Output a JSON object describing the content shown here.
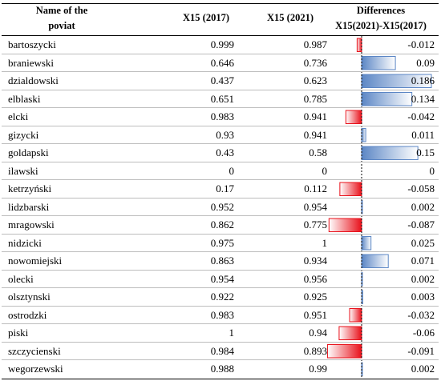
{
  "header": {
    "name_line1": "Name of the",
    "name_line2": "poviat",
    "col_2017": "X15 (2017)",
    "col_2021": "X15 (2021)",
    "diff_line1": "Differences",
    "diff_line2": "X15(2021)-X15(2017)"
  },
  "colors": {
    "positive": "#5b86c5",
    "negative": "#e8101a"
  },
  "chart_data": {
    "type": "table",
    "columns": [
      "Name of the poviat",
      "X15 (2017)",
      "X15 (2021)",
      "Differences X15(2021)-X15(2017)"
    ],
    "rows": [
      {
        "name": "bartoszycki",
        "v2017": "0.999",
        "v2021": "0.987",
        "diff": "-0.012",
        "d": -0.012
      },
      {
        "name": "braniewski",
        "v2017": "0.646",
        "v2021": "0.736",
        "diff": "0.09",
        "d": 0.09
      },
      {
        "name": "dzialdowski",
        "v2017": "0.437",
        "v2021": "0.623",
        "diff": "0.186",
        "d": 0.186
      },
      {
        "name": "elblaski",
        "v2017": "0.651",
        "v2021": "0.785",
        "diff": "0.134",
        "d": 0.134
      },
      {
        "name": "elcki",
        "v2017": "0.983",
        "v2021": "0.941",
        "diff": "-0.042",
        "d": -0.042
      },
      {
        "name": "gizycki",
        "v2017": "0.93",
        "v2021": "0.941",
        "diff": "0.011",
        "d": 0.011
      },
      {
        "name": "goldapski",
        "v2017": "0.43",
        "v2021": "0.58",
        "diff": "0.15",
        "d": 0.15
      },
      {
        "name": "ilawski",
        "v2017": "0",
        "v2021": "0",
        "diff": "0",
        "d": 0
      },
      {
        "name": "ketrzyński",
        "v2017": "0.17",
        "v2021": "0.112",
        "diff": "-0.058",
        "d": -0.058
      },
      {
        "name": "lidzbarski",
        "v2017": "0.952",
        "v2021": "0.954",
        "diff": "0.002",
        "d": 0.002
      },
      {
        "name": "mragowski",
        "v2017": "0.862",
        "v2021": "0.775",
        "diff": "-0.087",
        "d": -0.087
      },
      {
        "name": "nidzicki",
        "v2017": "0.975",
        "v2021": "1",
        "diff": "0.025",
        "d": 0.025
      },
      {
        "name": "nowomiejski",
        "v2017": "0.863",
        "v2021": "0.934",
        "diff": "0.071",
        "d": 0.071
      },
      {
        "name": "olecki",
        "v2017": "0.954",
        "v2021": "0.956",
        "diff": "0.002",
        "d": 0.002
      },
      {
        "name": "olsztynski",
        "v2017": "0.922",
        "v2021": "0.925",
        "diff": "0.003",
        "d": 0.003
      },
      {
        "name": "ostrodzki",
        "v2017": "0.983",
        "v2021": "0.951",
        "diff": "-0.032",
        "d": -0.032
      },
      {
        "name": "piski",
        "v2017": "1",
        "v2021": "0.94",
        "diff": "-0.06",
        "d": -0.06
      },
      {
        "name": "szczycienski",
        "v2017": "0.984",
        "v2021": "0.893",
        "diff": "-0.091",
        "d": -0.091
      },
      {
        "name": "wegorzewski",
        "v2017": "0.988",
        "v2021": "0.99",
        "diff": "0.002",
        "d": 0.002
      }
    ]
  }
}
